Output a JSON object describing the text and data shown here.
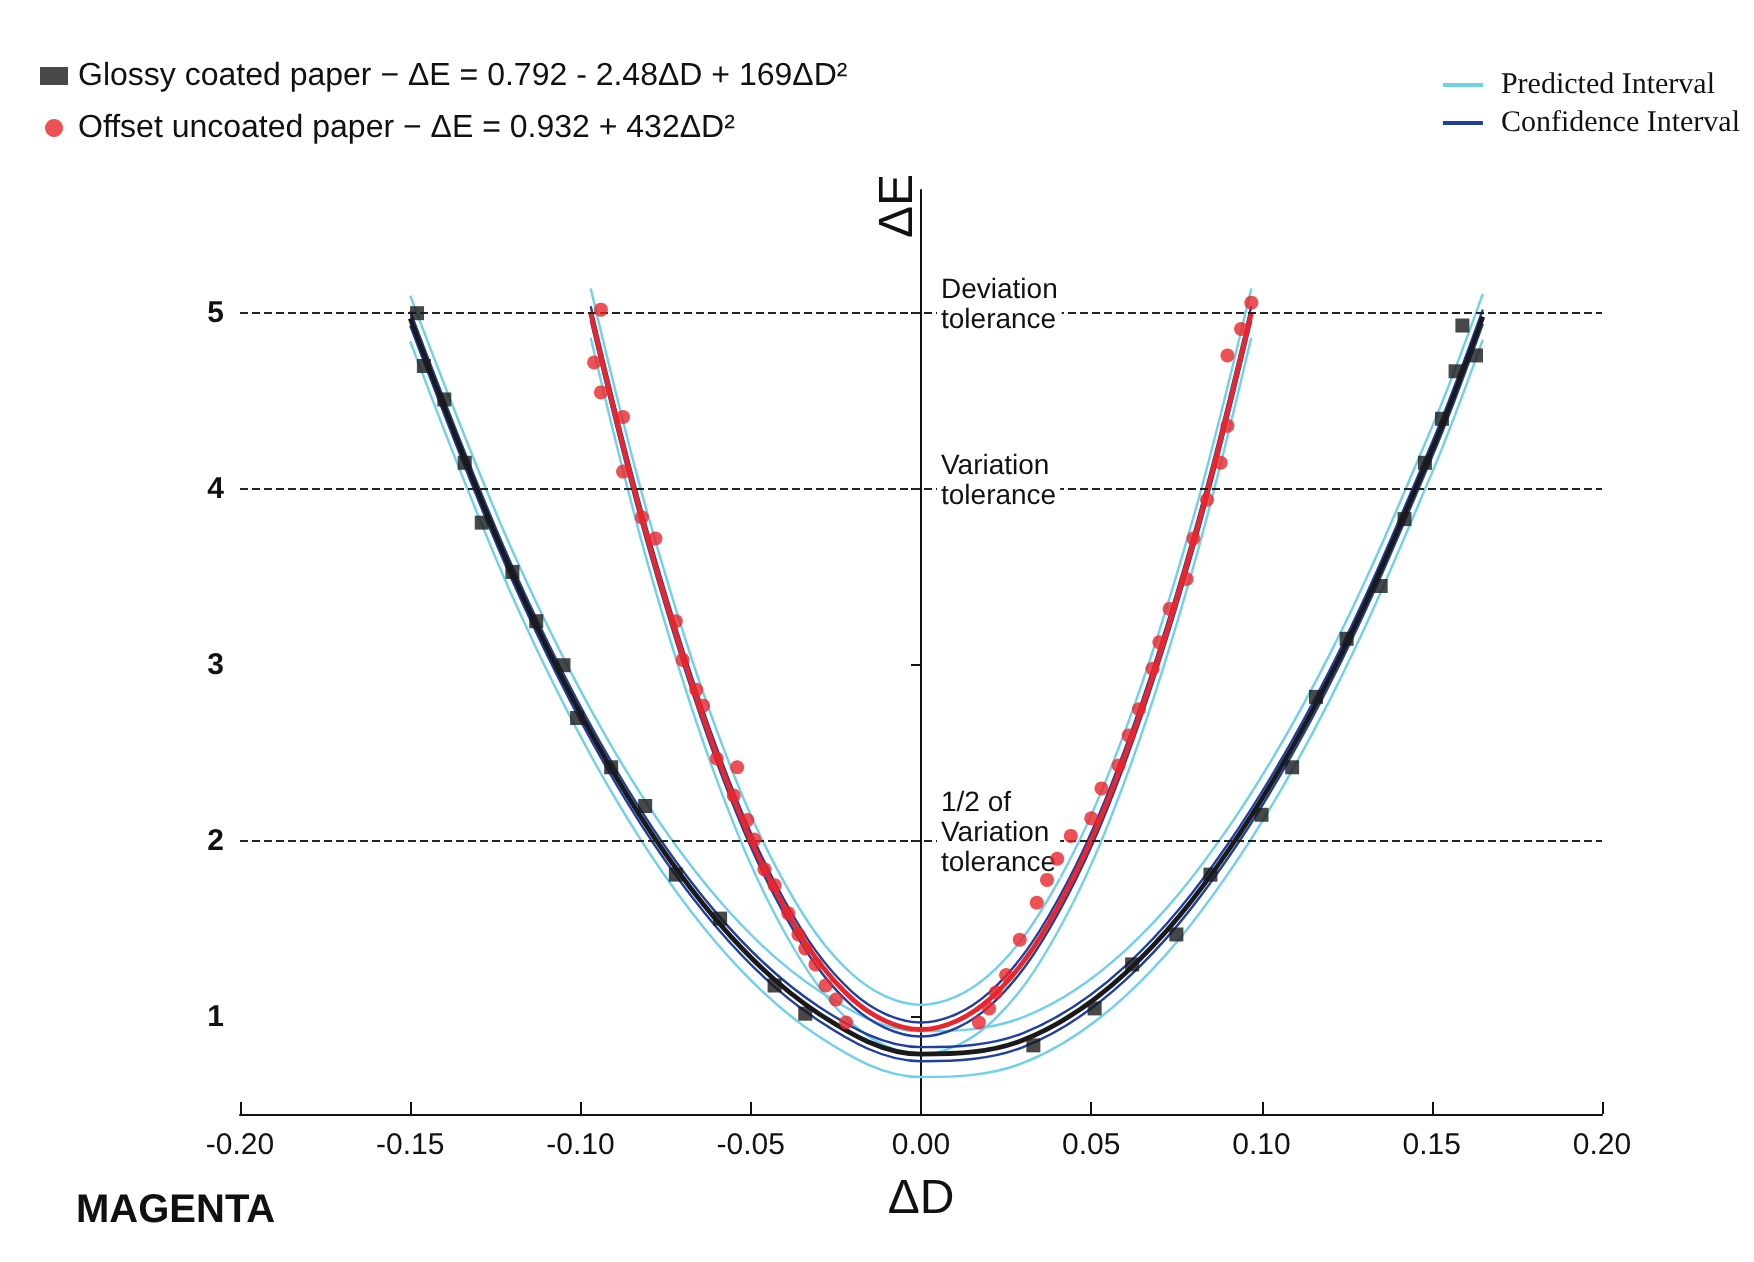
{
  "chart_data": {
    "type": "line",
    "xlabel": "ΔD",
    "ylabel": "ΔE",
    "annotations": [
      "MAGENTA"
    ],
    "xlim": [
      -0.2,
      0.2
    ],
    "ylim": [
      0.45,
      5.7
    ],
    "xticks": [
      {
        "value": -0.2,
        "label": "-0.20"
      },
      {
        "value": -0.15,
        "label": "-0.15"
      },
      {
        "value": -0.1,
        "label": "-0.10"
      },
      {
        "value": -0.05,
        "label": "-0.05"
      },
      {
        "value": 0,
        "label": "0.00"
      },
      {
        "value": 0.05,
        "label": "0.05"
      },
      {
        "value": 0.1,
        "label": "0.10"
      },
      {
        "value": 0.15,
        "label": "0.15"
      },
      {
        "value": 0.2,
        "label": "0.20"
      }
    ],
    "yticks": [
      1,
      2,
      3,
      4,
      5
    ],
    "grid": false,
    "legend": "top",
    "ref_lines": [
      {
        "axis": "y",
        "value": 5,
        "label": "Deviation tolerance",
        "line_style": "dashed",
        "color": "#222222"
      },
      {
        "axis": "y",
        "value": 4,
        "label": "Variation tolerance",
        "line_style": "dashed",
        "color": "#222222"
      },
      {
        "axis": "y",
        "value": 2,
        "label": "1/2 of Variation tolerance",
        "line_style": "dashed",
        "color": "#222222"
      }
    ],
    "series": [
      {
        "color": "#6fd0ea",
        "x": [
          -0.15,
          -0.12,
          -0.09,
          -0.06,
          -0.03,
          0,
          0.03,
          0.06,
          0.09,
          0.12,
          0.15,
          0.165
        ],
        "values": [
          5.1,
          3.65,
          2.51,
          1.68,
          1.15,
          0.92,
          1.0,
          1.38,
          2.07,
          3.06,
          4.35,
          5.11
        ],
        "name": "Predicted Interval"
      },
      {
        "color": "#6fd0ea",
        "x": [
          -0.15,
          -0.12,
          -0.09,
          -0.06,
          -0.03,
          0,
          0.03,
          0.06,
          0.09,
          0.12,
          0.15,
          0.165
        ],
        "values": [
          4.84,
          3.39,
          2.25,
          1.42,
          0.89,
          0.66,
          0.74,
          1.12,
          1.81,
          2.8,
          4.09,
          4.85
        ]
      },
      {
        "color": "#6fd0ea",
        "x": [
          -0.097,
          -0.08,
          -0.06,
          -0.04,
          -0.02,
          0,
          0.02,
          0.04,
          0.06,
          0.08,
          0.097
        ],
        "values": [
          5.14,
          3.84,
          2.63,
          1.76,
          1.24,
          1.07,
          1.24,
          1.76,
          2.63,
          3.84,
          5.14
        ]
      },
      {
        "color": "#6fd0ea",
        "x": [
          -0.097,
          -0.08,
          -0.06,
          -0.04,
          -0.02,
          0,
          0.02,
          0.04,
          0.06,
          0.08,
          0.097
        ],
        "values": [
          4.86,
          3.56,
          2.35,
          1.48,
          0.96,
          0.79,
          0.96,
          1.48,
          2.35,
          3.56,
          4.86
        ]
      },
      {
        "color": "#1f3f9f",
        "x": [
          -0.15,
          -0.12,
          -0.09,
          -0.06,
          -0.03,
          0,
          0.03,
          0.06,
          0.09,
          0.12,
          0.15,
          0.165
        ],
        "values": [
          5.01,
          3.56,
          2.42,
          1.59,
          1.06,
          0.83,
          0.91,
          1.29,
          1.98,
          2.97,
          4.26,
          5.02
        ],
        "name": "Confidence Interval"
      },
      {
        "color": "#1f3f9f",
        "x": [
          -0.15,
          -0.12,
          -0.09,
          -0.06,
          -0.03,
          0,
          0.03,
          0.06,
          0.09,
          0.12,
          0.15,
          0.165
        ],
        "values": [
          4.93,
          3.48,
          2.34,
          1.51,
          0.98,
          0.75,
          0.83,
          1.21,
          1.9,
          2.89,
          4.18,
          4.94
        ]
      },
      {
        "color": "#1f3f9f",
        "x": [
          -0.097,
          -0.08,
          -0.06,
          -0.04,
          -0.02,
          0,
          0.02,
          0.04,
          0.06,
          0.08,
          0.097
        ],
        "values": [
          5.04,
          3.74,
          2.53,
          1.66,
          1.14,
          0.97,
          1.14,
          1.66,
          2.53,
          3.74,
          5.04
        ]
      },
      {
        "color": "#1f3f9f",
        "x": [
          -0.097,
          -0.08,
          -0.06,
          -0.04,
          -0.02,
          0,
          0.02,
          0.04,
          0.06,
          0.08,
          0.097
        ],
        "values": [
          4.96,
          3.66,
          2.45,
          1.58,
          1.06,
          0.89,
          1.06,
          1.58,
          2.45,
          3.66,
          4.96
        ]
      },
      {
        "color": "#1a1a1a",
        "x": [
          -0.15,
          -0.12,
          -0.09,
          -0.06,
          -0.03,
          0,
          0.03,
          0.06,
          0.09,
          0.12,
          0.15,
          0.165
        ],
        "values": [
          4.97,
          3.52,
          2.38,
          1.55,
          1.02,
          0.79,
          0.87,
          1.25,
          1.94,
          2.93,
          4.22,
          4.98
        ]
      },
      {
        "color": "#e8262b",
        "x": [
          -0.097,
          -0.08,
          -0.06,
          -0.04,
          -0.02,
          0,
          0.02,
          0.04,
          0.06,
          0.08,
          0.097
        ],
        "values": [
          5.0,
          3.7,
          2.49,
          1.62,
          1.1,
          0.93,
          1.1,
          1.62,
          2.49,
          3.7,
          5.0
        ]
      },
      {
        "type": "scatter",
        "marker": "square",
        "color": "#1a1a1a",
        "name": "Glossy coated paper − ΔE = 0.792 - 2.48ΔD + 169ΔD²",
        "x": [
          -0.148,
          -0.146,
          -0.14,
          -0.134,
          -0.129,
          -0.12,
          -0.113,
          -0.105,
          -0.101,
          -0.091,
          -0.081,
          -0.072,
          -0.059,
          -0.043,
          -0.034,
          0.033,
          0.051,
          0.062,
          0.075,
          0.085,
          0.1,
          0.109,
          0.116,
          0.125,
          0.135,
          0.142,
          0.148,
          0.153,
          0.157,
          0.159,
          0.163
        ],
        "values": [
          5.0,
          4.7,
          4.51,
          4.15,
          3.81,
          3.53,
          3.25,
          3.0,
          2.7,
          2.42,
          2.2,
          1.81,
          1.56,
          1.18,
          1.02,
          0.84,
          1.05,
          1.3,
          1.47,
          1.81,
          2.15,
          2.42,
          2.82,
          3.15,
          3.45,
          3.83,
          4.15,
          4.4,
          4.67,
          4.93,
          4.76
        ]
      },
      {
        "type": "scatter",
        "marker": "circle",
        "color": "#e8262b",
        "name": "Offset uncoated paper − ΔE = 0.932 + 432ΔD²",
        "x": [
          -0.094,
          -0.096,
          -0.094,
          -0.0875,
          -0.0875,
          -0.082,
          -0.078,
          -0.072,
          -0.07,
          -0.066,
          -0.064,
          -0.06,
          -0.054,
          -0.055,
          -0.051,
          -0.049,
          -0.046,
          -0.043,
          -0.039,
          -0.036,
          -0.034,
          -0.031,
          -0.028,
          -0.025,
          -0.022,
          0.017,
          0.02,
          0.022,
          0.025,
          0.029,
          0.034,
          0.037,
          0.04,
          0.044,
          0.05,
          0.053,
          0.058,
          0.061,
          0.064,
          0.068,
          0.07,
          0.073,
          0.078,
          0.08,
          0.084,
          0.088,
          0.09,
          0.09,
          0.094,
          0.097
        ],
        "values": [
          5.02,
          4.72,
          4.55,
          4.41,
          4.1,
          3.84,
          3.72,
          3.25,
          3.03,
          2.86,
          2.77,
          2.47,
          2.42,
          2.26,
          2.12,
          2.01,
          1.84,
          1.75,
          1.59,
          1.47,
          1.39,
          1.3,
          1.18,
          1.1,
          0.97,
          0.97,
          1.05,
          1.14,
          1.24,
          1.44,
          1.65,
          1.78,
          1.9,
          2.03,
          2.13,
          2.3,
          2.43,
          2.6,
          2.75,
          2.98,
          3.13,
          3.32,
          3.49,
          3.72,
          3.94,
          4.15,
          4.36,
          4.76,
          4.91,
          5.06
        ]
      }
    ]
  }
}
